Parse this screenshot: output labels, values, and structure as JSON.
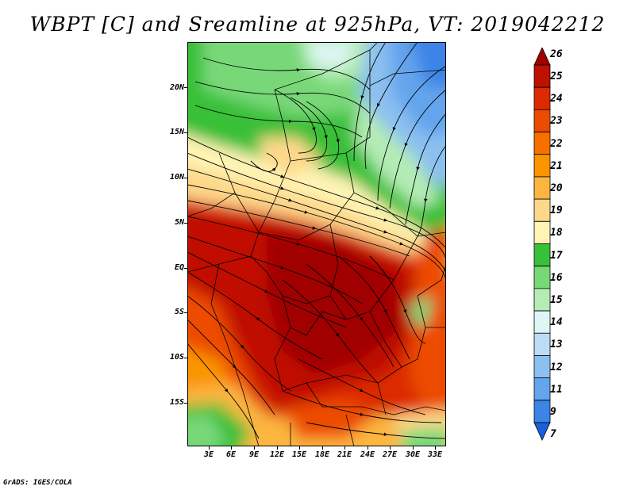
{
  "title": "WBPT [C] and Sreamline at 925hPa, VT: 2019042212",
  "credit": "GrADS: IGES/COLA",
  "map": {
    "latitude_labels": [
      "20N",
      "15N",
      "10N",
      "5N",
      "EQ",
      "5S",
      "10S",
      "15S"
    ],
    "longitude_labels": [
      "3E",
      "6E",
      "9E",
      "12E",
      "15E",
      "18E",
      "21E",
      "24E",
      "27E",
      "30E",
      "33E"
    ]
  },
  "colorbar": {
    "levels": [
      "26",
      "25",
      "24",
      "23",
      "22",
      "21",
      "20",
      "19",
      "18",
      "17",
      "16",
      "15",
      "14",
      "13",
      "12",
      "11",
      "9",
      "7"
    ],
    "colors": [
      "#a00000",
      "#c01000",
      "#dc2a00",
      "#ec4c00",
      "#f67000",
      "#fa9400",
      "#fcb640",
      "#fdd88a",
      "#fff4b4",
      "#38c038",
      "#78d878",
      "#b4ecb4",
      "#def6f6",
      "#bcdcf6",
      "#8cc0f0",
      "#64a4ec",
      "#3c84e6",
      "#1a60dc"
    ]
  }
}
